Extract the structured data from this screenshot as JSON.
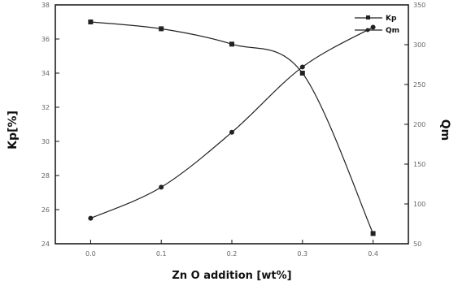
{
  "chart_data": {
    "type": "line",
    "title": "",
    "xlabel": "Zn O addition [wt%]",
    "ylabel_left": "Kp[%]",
    "ylabel_right": "Qm",
    "x": [
      0.0,
      0.1,
      0.2,
      0.3,
      0.4
    ],
    "x_ticks": [
      "0.0",
      "0.1",
      "0.2",
      "0.3",
      "0.4"
    ],
    "xlim": [
      -0.05,
      0.45
    ],
    "y_left_ticks": [
      "24",
      "26",
      "28",
      "30",
      "32",
      "34",
      "36",
      "38"
    ],
    "ylim_left": [
      24,
      38
    ],
    "y_right_ticks": [
      "50",
      "100",
      "150",
      "200",
      "250",
      "300",
      "350"
    ],
    "ylim_right": [
      50,
      350
    ],
    "series": [
      {
        "name": "Kp",
        "axis": "left",
        "marker": "square",
        "values": [
          37.0,
          36.6,
          35.7,
          34.0,
          24.6
        ]
      },
      {
        "name": "Qm",
        "axis": "right",
        "marker": "circle",
        "values": [
          82,
          121,
          190,
          272,
          322
        ]
      }
    ],
    "legend_position": "top-right",
    "grid": false,
    "colors": {
      "line": "#222222",
      "axis": "#111111",
      "tick_label": "#666666"
    }
  }
}
